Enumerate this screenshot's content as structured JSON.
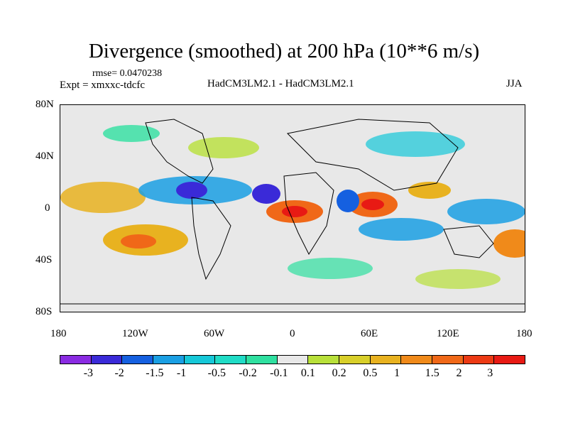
{
  "title": "Divergence (smoothed) at 200 hPa (10**6 m/s)",
  "header": {
    "rmse": "rmse= 0.0470238",
    "expt": "Expt = xmxxc-tdcfc",
    "models": "HadCM3LM2.1 - HadCM3LM2.1",
    "season": "JJA"
  },
  "axes": {
    "y_ticks": [
      "80N",
      "40N",
      "0",
      "40S",
      "80S"
    ],
    "x_ticks": [
      "180",
      "120W",
      "60W",
      "0",
      "60E",
      "120E",
      "180"
    ]
  },
  "colorbar": {
    "colors": [
      "#8a2be2",
      "#3a2ad8",
      "#1560e0",
      "#1a9fe3",
      "#16c8d8",
      "#20dcc6",
      "#2fe0a0",
      "#e8e8e8",
      "#b8e03a",
      "#d8cf2a",
      "#e8b220",
      "#f08a1a",
      "#f06818",
      "#ec3a14",
      "#e81a14"
    ],
    "labels": [
      "-3",
      "-2",
      "-1.5",
      "-1",
      "-0.5",
      "-0.2",
      "-0.1",
      "0.1",
      "0.2",
      "0.5",
      "1",
      "1.5",
      "2",
      "3"
    ]
  }
}
